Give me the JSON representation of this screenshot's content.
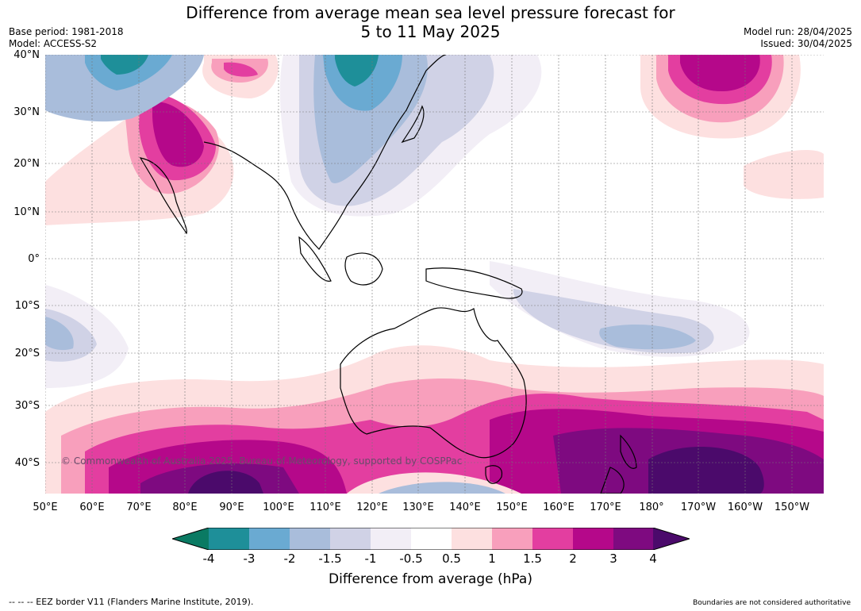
{
  "title_line1": "Difference from average mean sea level pressure forecast for",
  "title_line2": "5 to 11 May 2025",
  "meta_left": {
    "base_period": "Base period: 1981-2018",
    "model": "Model: ACCESS-S2"
  },
  "meta_right": {
    "model_run": "Model run: 28/04/2025",
    "issued": "Issued: 30/04/2025"
  },
  "lat_labels": [
    "40°N",
    "30°N",
    "20°N",
    "10°N",
    "0°",
    "10°S",
    "20°S",
    "30°S",
    "40°S"
  ],
  "lon_labels": [
    "50°E",
    "60°E",
    "70°E",
    "80°E",
    "90°E",
    "100°E",
    "110°E",
    "120°E",
    "130°E",
    "140°E",
    "150°E",
    "160°E",
    "170°E",
    "180°",
    "170°W",
    "160°W",
    "150°W"
  ],
  "colorbar": {
    "ticks": [
      "-4",
      "-3",
      "-2",
      "-1.5",
      "-1",
      "-0.5",
      "0.5",
      "1",
      "1.5",
      "2",
      "3",
      "4"
    ],
    "colors": [
      "#0a7a63",
      "#1e8f99",
      "#6aaad2",
      "#a9bddb",
      "#d0d2e6",
      "#f2eef6",
      "#ffffff",
      "#fde0e0",
      "#f89fbc",
      "#e33ea0",
      "#b5088a",
      "#7e0a80",
      "#4b0a6b"
    ],
    "label": "Difference from average (hPa)"
  },
  "copyright": "© Commonwealth of Australia 2025, Bureau of Meteorology, supported by COSPPac",
  "footer_left": "--  --  -- EEZ border V11 (Flanders Marine Institute, 2019).",
  "footer_right": "Boundaries are not considered authoritative"
}
